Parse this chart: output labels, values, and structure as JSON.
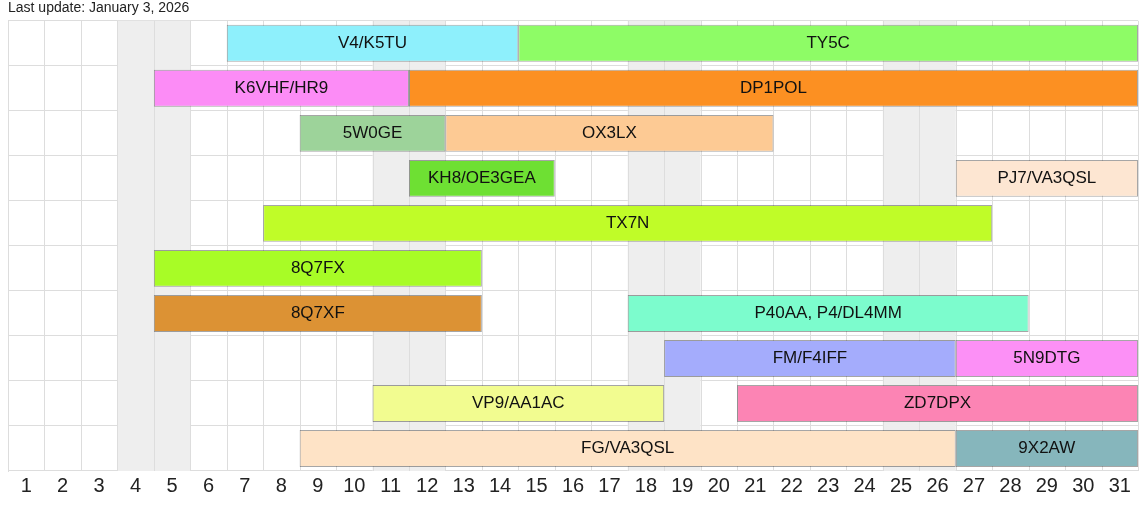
{
  "chart_data": {
    "type": "bar",
    "orientation": "horizontal",
    "title": "Last update: January 3, 2026",
    "categories": [
      null,
      null,
      null,
      null,
      null,
      null,
      null,
      null,
      null,
      null
    ],
    "series": [
      {
        "name": "V4/K5TU",
        "color": "#8ef0fc",
        "base": [
          6.5,
          null,
          null,
          null,
          null,
          null,
          null,
          null,
          null,
          null
        ],
        "values": [
          8,
          null,
          null,
          null,
          null,
          null,
          null,
          null,
          null,
          null
        ]
      },
      {
        "name": "TY5C",
        "color": "#8efc66",
        "base": [
          14.5,
          null,
          null,
          null,
          null,
          null,
          null,
          null,
          null,
          null
        ],
        "values": [
          17,
          null,
          null,
          null,
          null,
          null,
          null,
          null,
          null,
          null
        ]
      },
      {
        "name": "K6VHF/HR9",
        "color": "#fc8cf6",
        "base": [
          null,
          4.5,
          null,
          null,
          null,
          null,
          null,
          null,
          null,
          null
        ],
        "values": [
          null,
          7,
          null,
          null,
          null,
          null,
          null,
          null,
          null,
          null
        ]
      },
      {
        "name": "DP1POL",
        "color": "#fc9022",
        "base": [
          null,
          11.5,
          null,
          null,
          null,
          null,
          null,
          null,
          null,
          null
        ],
        "values": [
          null,
          20,
          null,
          null,
          null,
          null,
          null,
          null,
          null,
          null
        ]
      },
      {
        "name": "5W0GE",
        "color": "#9dd39a",
        "base": [
          null,
          null,
          8.5,
          null,
          null,
          null,
          null,
          null,
          null,
          null
        ],
        "values": [
          null,
          null,
          4,
          null,
          null,
          null,
          null,
          null,
          null,
          null
        ]
      },
      {
        "name": "OX3LX",
        "color": "#fdca94",
        "base": [
          null,
          null,
          12.5,
          null,
          null,
          null,
          null,
          null,
          null,
          null
        ],
        "values": [
          null,
          null,
          9,
          null,
          null,
          null,
          null,
          null,
          null,
          null
        ]
      },
      {
        "name": "KH8/OE3GEA",
        "color": "#6ee033",
        "base": [
          null,
          null,
          null,
          11.5,
          null,
          null,
          null,
          null,
          null,
          null
        ],
        "values": [
          null,
          null,
          null,
          4,
          null,
          null,
          null,
          null,
          null,
          null
        ]
      },
      {
        "name": "PJ7/VA3QSL",
        "color": "#fde6d2",
        "base": [
          null,
          null,
          null,
          26.5,
          null,
          null,
          null,
          null,
          null,
          null
        ],
        "values": [
          null,
          null,
          null,
          5,
          null,
          null,
          null,
          null,
          null,
          null
        ]
      },
      {
        "name": "TX7N",
        "color": "#c0fc28",
        "base": [
          null,
          null,
          null,
          null,
          7.5,
          null,
          null,
          null,
          null,
          null
        ],
        "values": [
          null,
          null,
          null,
          null,
          20,
          null,
          null,
          null,
          null,
          null
        ]
      },
      {
        "name": "8Q7FX",
        "color": "#a8fc26",
        "base": [
          null,
          null,
          null,
          null,
          null,
          4.5,
          null,
          null,
          null,
          null
        ],
        "values": [
          null,
          null,
          null,
          null,
          null,
          9,
          null,
          null,
          null,
          null
        ]
      },
      {
        "name": "8Q7XF",
        "color": "#dc9234",
        "base": [
          null,
          null,
          null,
          null,
          null,
          null,
          4.5,
          null,
          null,
          null
        ],
        "values": [
          null,
          null,
          null,
          null,
          null,
          null,
          9,
          null,
          null,
          null
        ]
      },
      {
        "name": "P40AA, P4/DL4MM",
        "color": "#7cfccd",
        "base": [
          null,
          null,
          null,
          null,
          null,
          null,
          17.5,
          null,
          null,
          null
        ],
        "values": [
          null,
          null,
          null,
          null,
          null,
          null,
          11,
          null,
          null,
          null
        ]
      },
      {
        "name": "FM/F4IFF",
        "color": "#a4acfc",
        "base": [
          null,
          null,
          null,
          null,
          null,
          null,
          null,
          18.5,
          null,
          null
        ],
        "values": [
          null,
          null,
          null,
          null,
          null,
          null,
          null,
          8,
          null,
          null
        ]
      },
      {
        "name": "5N9DTG",
        "color": "#fc90f6",
        "base": [
          null,
          null,
          null,
          null,
          null,
          null,
          null,
          26.5,
          null,
          null
        ],
        "values": [
          null,
          null,
          null,
          null,
          null,
          null,
          null,
          5,
          null,
          null
        ]
      },
      {
        "name": "VP9/AA1AC",
        "color": "#f2fc90",
        "base": [
          null,
          null,
          null,
          null,
          null,
          null,
          null,
          null,
          10.5,
          null
        ],
        "values": [
          null,
          null,
          null,
          null,
          null,
          null,
          null,
          null,
          8,
          null
        ]
      },
      {
        "name": "ZD7DPX",
        "color": "#fc84b4",
        "base": [
          null,
          null,
          null,
          null,
          null,
          null,
          null,
          null,
          20.5,
          null
        ],
        "values": [
          null,
          null,
          null,
          null,
          null,
          null,
          null,
          null,
          11,
          null
        ]
      },
      {
        "name": "FG/VA3QSL",
        "color": "#fee3c6",
        "base": [
          null,
          null,
          null,
          null,
          null,
          null,
          null,
          null,
          null,
          8.5
        ],
        "values": [
          null,
          null,
          null,
          null,
          null,
          null,
          null,
          null,
          null,
          18
        ]
      },
      {
        "name": "9X2AW",
        "color": "#86b6bc",
        "base": [
          null,
          null,
          null,
          null,
          null,
          null,
          null,
          null,
          null,
          26.5
        ],
        "values": [
          null,
          null,
          null,
          null,
          null,
          null,
          null,
          null,
          null,
          5
        ]
      }
    ],
    "xlim": [
      0.5,
      31.5
    ],
    "xticks": [
      1,
      2,
      3,
      4,
      5,
      6,
      7,
      8,
      9,
      10,
      11,
      12,
      13,
      14,
      15,
      16,
      17,
      18,
      19,
      20,
      21,
      22,
      23,
      24,
      25,
      26,
      27,
      28,
      29,
      30,
      31
    ],
    "bands": [
      {
        "axis": "x",
        "from": 3.5,
        "to": 5.5,
        "color": "#eeeeee"
      },
      {
        "axis": "x",
        "from": 10.5,
        "to": 12.5,
        "color": "#eeeeee"
      },
      {
        "axis": "x",
        "from": 17.5,
        "to": 19.5,
        "color": "#eeeeee"
      },
      {
        "axis": "x",
        "from": 24.5,
        "to": 26.5,
        "color": "#eeeeee"
      }
    ],
    "grid": true,
    "tick_labels": "x",
    "legend": false
  }
}
